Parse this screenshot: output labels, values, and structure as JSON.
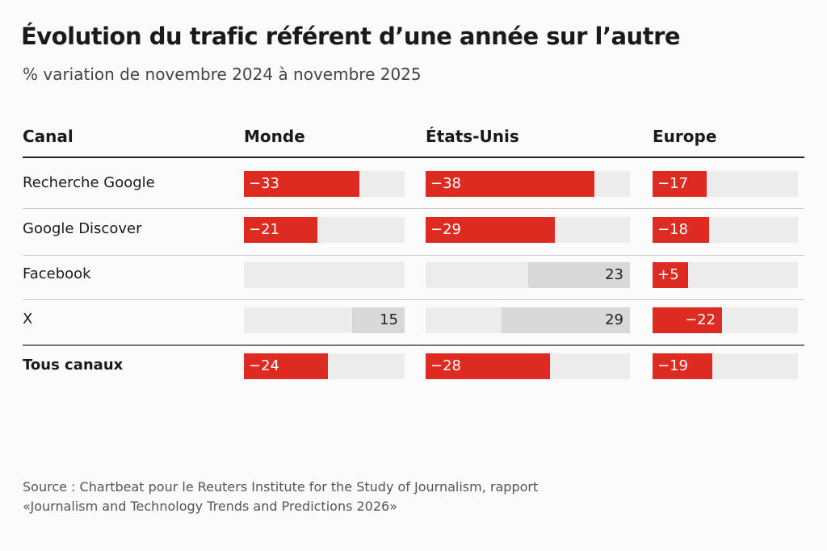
{
  "chart_data": {
    "type": "table",
    "title": "Évolution du trafic référent d’une année sur l’autre",
    "subtitle": "% variation de novembre 2024 à novembre 2025",
    "header": {
      "channel": "Canal",
      "columns": [
        "Monde",
        "États-Unis",
        "Europe"
      ]
    },
    "rows": [
      {
        "label": "Recherche Google",
        "values": [
          -33,
          -38,
          -17
        ],
        "bold": false
      },
      {
        "label": "Google Discover",
        "values": [
          -21,
          -29,
          -18
        ],
        "bold": false
      },
      {
        "label": "Facebook",
        "values": [
          null,
          23,
          5
        ],
        "bold": false
      },
      {
        "label": "X",
        "values": [
          15,
          29,
          -22
        ],
        "bold": false
      },
      {
        "label": "Tous canaux",
        "values": [
          -24,
          -28,
          -19
        ],
        "bold": true
      }
    ],
    "colors": {
      "negative": "#de2b22",
      "positive": "#d8d8d8",
      "track": "#ececec"
    },
    "source": [
      "Source : Chartbeat pour le Reuters Institute for the Study of Journalism, rapport",
      "«Journalism and Technology Trends and Predictions 2026»"
    ]
  }
}
